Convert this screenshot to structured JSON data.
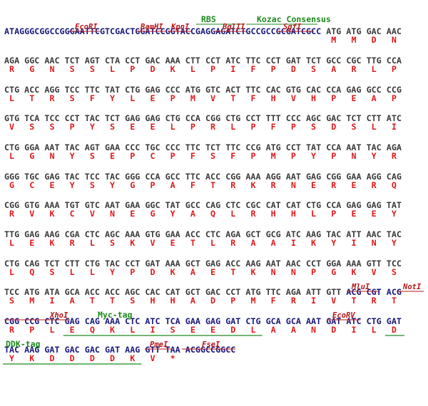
{
  "rows": [
    {
      "leader": "ATAGGGCGGCCGGGAATTCGTCGACTGGATCCGGTACCGAGGAGATCTGCCGCCGCGATCGCC",
      "codons": [
        "ATG",
        "ATG",
        "GAC",
        "AAC"
      ],
      "amino_acids": [
        "M",
        "M",
        "D",
        "N"
      ]
    },
    {
      "codons": [
        "AGA",
        "GGC",
        "AAC",
        "TCT",
        "AGT",
        "CTA",
        "CCT",
        "GAC",
        "AAA",
        "CTT",
        "CCT",
        "ATC",
        "TTC",
        "CCT",
        "GAT",
        "TCT",
        "GCC",
        "CGC",
        "TTG",
        "CCA"
      ],
      "amino_acids": [
        "R",
        "G",
        "N",
        "S",
        "S",
        "L",
        "P",
        "D",
        "K",
        "L",
        "P",
        "I",
        "F",
        "P",
        "D",
        "S",
        "A",
        "R",
        "L",
        "P"
      ]
    },
    {
      "codons": [
        "CTG",
        "ACC",
        "AGG",
        "TCC",
        "TTC",
        "TAT",
        "CTG",
        "GAG",
        "CCC",
        "ATG",
        "GTC",
        "ACT",
        "TTC",
        "CAC",
        "GTG",
        "CAC",
        "CCA",
        "GAG",
        "GCC",
        "CCG"
      ],
      "amino_acids": [
        "L",
        "T",
        "R",
        "S",
        "F",
        "Y",
        "L",
        "E",
        "P",
        "M",
        "V",
        "T",
        "F",
        "H",
        "V",
        "H",
        "P",
        "E",
        "A",
        "P"
      ]
    },
    {
      "codons": [
        "GTG",
        "TCA",
        "TCC",
        "CCT",
        "TAC",
        "TCT",
        "GAG",
        "GAG",
        "CTG",
        "CCA",
        "CGG",
        "CTG",
        "CCT",
        "TTT",
        "CCC",
        "AGC",
        "GAC",
        "TCT",
        "CTT",
        "ATC"
      ],
      "amino_acids": [
        "V",
        "S",
        "S",
        "P",
        "Y",
        "S",
        "E",
        "E",
        "L",
        "P",
        "R",
        "L",
        "P",
        "F",
        "P",
        "S",
        "D",
        "S",
        "L",
        "I"
      ]
    },
    {
      "codons": [
        "CTG",
        "GGA",
        "AAT",
        "TAC",
        "AGT",
        "GAA",
        "CCC",
        "TGC",
        "CCC",
        "TTC",
        "TCT",
        "TTC",
        "CCG",
        "ATG",
        "CCT",
        "TAT",
        "CCA",
        "AAT",
        "TAC",
        "AGA"
      ],
      "amino_acids": [
        "L",
        "G",
        "N",
        "Y",
        "S",
        "E",
        "P",
        "C",
        "P",
        "F",
        "S",
        "F",
        "P",
        "M",
        "P",
        "Y",
        "P",
        "N",
        "Y",
        "R"
      ]
    },
    {
      "codons": [
        "GGG",
        "TGC",
        "GAG",
        "TAC",
        "TCC",
        "TAC",
        "GGG",
        "CCA",
        "GCC",
        "TTC",
        "ACC",
        "CGG",
        "AAA",
        "AGG",
        "AAT",
        "GAG",
        "CGG",
        "GAA",
        "AGG",
        "CAG"
      ],
      "amino_acids": [
        "G",
        "C",
        "E",
        "Y",
        "S",
        "Y",
        "G",
        "P",
        "A",
        "F",
        "T",
        "R",
        "K",
        "R",
        "N",
        "E",
        "R",
        "E",
        "R",
        "Q"
      ]
    },
    {
      "codons": [
        "CGG",
        "GTG",
        "AAA",
        "TGT",
        "GTC",
        "AAT",
        "GAA",
        "GGC",
        "TAT",
        "GCC",
        "CAG",
        "CTC",
        "CGC",
        "CAT",
        "CAT",
        "CTG",
        "CCA",
        "GAG",
        "GAG",
        "TAT"
      ],
      "amino_acids": [
        "R",
        "V",
        "K",
        "C",
        "V",
        "N",
        "E",
        "G",
        "Y",
        "A",
        "Q",
        "L",
        "R",
        "H",
        "H",
        "L",
        "P",
        "E",
        "E",
        "Y"
      ]
    },
    {
      "codons": [
        "TTG",
        "GAG",
        "AAG",
        "CGA",
        "CTC",
        "AGC",
        "AAA",
        "GTG",
        "GAA",
        "ACC",
        "CTC",
        "AGA",
        "GCT",
        "GCG",
        "ATC",
        "AAG",
        "TAC",
        "ATT",
        "AAC",
        "TAC"
      ],
      "amino_acids": [
        "L",
        "E",
        "K",
        "R",
        "L",
        "S",
        "K",
        "V",
        "E",
        "T",
        "L",
        "R",
        "A",
        "A",
        "I",
        "K",
        "Y",
        "I",
        "N",
        "Y"
      ]
    },
    {
      "codons": [
        "CTG",
        "CAG",
        "TCT",
        "CTT",
        "CTG",
        "TAC",
        "CCT",
        "GAT",
        "AAA",
        "GCT",
        "GAG",
        "ACC",
        "AAG",
        "AAT",
        "AAC",
        "CCT",
        "GGA",
        "AAA",
        "GTT",
        "TCC"
      ],
      "amino_acids": [
        "L",
        "Q",
        "S",
        "L",
        "L",
        "Y",
        "P",
        "D",
        "K",
        "A",
        "E",
        "T",
        "K",
        "N",
        "N",
        "P",
        "G",
        "K",
        "V",
        "S"
      ]
    },
    {
      "codons": [
        "TCC",
        "ATG",
        "ATA",
        "GCA",
        "ACC",
        "ACC",
        "AGC",
        "CAC",
        "CAT",
        "GCT",
        "GAC",
        "CCT",
        "ATG",
        "TTC",
        "AGA",
        "ATT",
        "GTT",
        "ACG",
        "CGT",
        "ACG"
      ],
      "amino_acids": [
        "S",
        "M",
        "I",
        "A",
        "T",
        "T",
        "S",
        "H",
        "H",
        "A",
        "D",
        "P",
        "M",
        "F",
        "R",
        "I",
        "V",
        "T",
        "R",
        "T"
      ]
    },
    {
      "codons": [
        "CGG",
        "CCG",
        "CTC",
        "GAG",
        "CAG",
        "AAA",
        "CTC",
        "ATC",
        "TCA",
        "GAA",
        "GAG",
        "GAT",
        "CTG",
        "GCA",
        "GCA",
        "AAT",
        "GAT",
        "ATC",
        "CTG",
        "GAT"
      ],
      "amino_acids": [
        "R",
        "P",
        "L",
        "E",
        "Q",
        "K",
        "L",
        "I",
        "S",
        "E",
        "E",
        "D",
        "L",
        "A",
        "A",
        "N",
        "D",
        "I",
        "L",
        "D"
      ]
    },
    {
      "codons": [
        "TAC",
        "AAG",
        "GAT",
        "GAC",
        "GAC",
        "GAT",
        "AAG",
        "GTT",
        "TAA"
      ],
      "amino_acids": [
        "Y",
        "K",
        "D",
        "D",
        "D",
        "D",
        "K",
        "V",
        "*"
      ],
      "trailer": "ACGGCCGGCC"
    }
  ],
  "annotations": [
    {
      "text": "RBS"
    },
    {
      "text": "Kozac Consensus"
    },
    {
      "text": "EcoRI"
    },
    {
      "text": "BamHI"
    },
    {
      "text": "KpnI"
    },
    {
      "text": "BglII"
    },
    {
      "text": "SgfI"
    },
    {
      "text": "MluI"
    },
    {
      "text": "NotI"
    },
    {
      "text": "XhoI"
    },
    {
      "text": "Myc-tag"
    },
    {
      "text": "EcoRV"
    },
    {
      "text": "DDK-tag"
    },
    {
      "text": "PmeI"
    },
    {
      "text": "FseI"
    }
  ]
}
